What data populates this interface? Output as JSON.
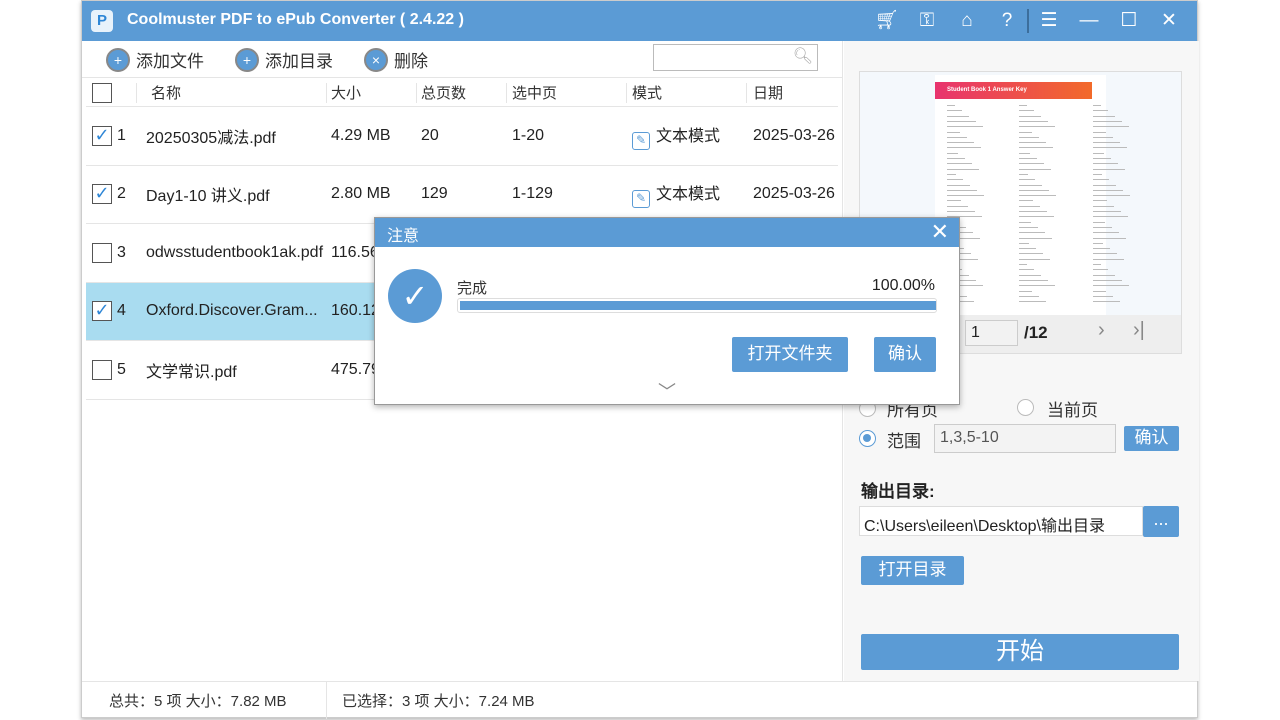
{
  "app": {
    "title": "Coolmuster PDF to ePub Converter  ( 2.4.22 )",
    "logo_text": "P"
  },
  "window_icons": [
    "cart-icon",
    "key-icon",
    "home-icon",
    "help-icon",
    "feedback-icon",
    "minimize-icon",
    "maximize-icon",
    "close-icon"
  ],
  "toolbar": {
    "add_file": "添加文件",
    "add_folder": "添加目录",
    "delete": "删除",
    "search_placeholder": ""
  },
  "table": {
    "headers": [
      "名称",
      "大小",
      "总页数",
      "选中页",
      "模式",
      "日期"
    ],
    "rows": [
      {
        "n": "1",
        "checked": true,
        "name": "20250305减法.pdf",
        "size": "4.29 MB",
        "pages": "20",
        "selected_pages": "1-20",
        "mode": "文本模式",
        "date": "2025-03-26"
      },
      {
        "n": "2",
        "checked": true,
        "name": "Day1-10 讲义.pdf",
        "size": "2.80 MB",
        "pages": "129",
        "selected_pages": "1-129",
        "mode": "文本模式",
        "date": "2025-03-26"
      },
      {
        "n": "3",
        "checked": false,
        "name": "odwsstudentbook1ak.pdf",
        "size": "116.56",
        "pages": "",
        "selected_pages": "",
        "mode": "",
        "date": ""
      },
      {
        "n": "4",
        "checked": true,
        "name": "Oxford.Discover.Gram...",
        "size": "160.12",
        "pages": "",
        "selected_pages": "",
        "mode": "",
        "date": "",
        "highlighted": true
      },
      {
        "n": "5",
        "checked": false,
        "name": "文学常识.pdf",
        "size": "475.79",
        "pages": "",
        "selected_pages": "",
        "mode": "",
        "date": ""
      }
    ]
  },
  "preview": {
    "page_title": "Student Book 1 Answer Key",
    "current_page": "1",
    "total": "/12"
  },
  "options": {
    "all_pages": "所有页",
    "current_page": "当前页",
    "range": "范围",
    "range_value": "1,3,5-10",
    "range_selected": true,
    "confirm": "确认"
  },
  "output": {
    "label": "输出目录:",
    "path": "C:\\Users\\eileen\\Desktop\\输出目录",
    "browse": "...",
    "open_dir": "打开目录",
    "start": "开始"
  },
  "status": {
    "total": "总共：5 项 大小：7.82 MB",
    "selected": "已选择：3 项 大小：7.24 MB"
  },
  "dialog": {
    "title": "注意",
    "label": "完成",
    "percent": "100.00%",
    "progress": 100,
    "open_folder": "打开文件夹",
    "ok": "确认"
  },
  "colors": {
    "accent": "#5b9bd5",
    "row_highlight": "#a9dcf0"
  }
}
